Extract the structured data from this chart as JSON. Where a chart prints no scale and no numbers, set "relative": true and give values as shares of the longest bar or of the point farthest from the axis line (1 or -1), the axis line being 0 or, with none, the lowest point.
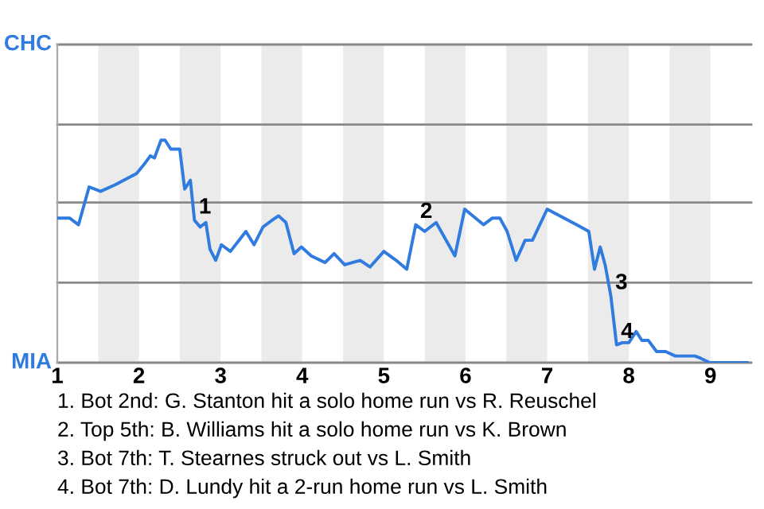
{
  "chart_data": {
    "type": "line",
    "relative": true,
    "series": [
      {
        "color": "#2f7be0",
        "x": [
          1.0,
          1.15,
          1.26,
          1.39,
          1.53,
          1.71,
          1.97,
          2.06,
          2.14,
          2.19,
          2.27,
          2.32,
          2.39,
          2.5,
          2.56,
          2.63,
          2.68,
          2.75,
          2.82,
          2.87,
          2.94,
          3.01,
          3.12,
          3.31,
          3.41,
          3.52,
          3.63,
          3.71,
          3.8,
          3.9,
          3.99,
          4.11,
          4.28,
          4.39,
          4.52,
          4.71,
          4.83,
          5.0,
          5.15,
          5.28,
          5.39,
          5.5,
          5.64,
          5.87,
          5.99,
          6.22,
          6.33,
          6.42,
          6.51,
          6.62,
          6.73,
          6.82,
          7.0,
          7.36,
          7.51,
          7.58,
          7.65,
          7.71,
          7.78,
          7.85,
          7.92,
          8.0,
          8.09,
          8.16,
          8.24,
          8.34,
          8.45,
          8.57,
          8.66,
          8.81,
          8.88,
          8.99,
          9.45
        ],
        "values": [
          0.65,
          0.65,
          0.62,
          0.79,
          0.77,
          0.8,
          0.85,
          0.89,
          0.93,
          0.92,
          1,
          1,
          0.96,
          0.96,
          0.78,
          0.82,
          0.64,
          0.61,
          0.63,
          0.51,
          0.46,
          0.53,
          0.5,
          0.59,
          0.53,
          0.61,
          0.64,
          0.66,
          0.63,
          0.49,
          0.52,
          0.48,
          0.45,
          0.49,
          0.44,
          0.46,
          0.43,
          0.5,
          0.46,
          0.42,
          0.62,
          0.59,
          0.63,
          0.48,
          0.69,
          0.62,
          0.65,
          0.65,
          0.59,
          0.46,
          0.55,
          0.55,
          0.69,
          0.62,
          0.59,
          0.42,
          0.52,
          0.44,
          0.3,
          0.08,
          0.09,
          0.09,
          0.14,
          0.1,
          0.1,
          0.05,
          0.05,
          0.03,
          0.03,
          0.03,
          0.02,
          0,
          0
        ]
      }
    ],
    "xlim": [
      1,
      9.5
    ],
    "xticks": [
      1,
      2,
      3,
      4,
      5,
      6,
      7,
      8,
      9
    ],
    "ref_lines": [
      {
        "axis": "y",
        "value": 0,
        "label": "MIA",
        "color": "#888888"
      },
      {
        "axis": "y",
        "value": 0.36,
        "label": null,
        "color": "#888888"
      },
      {
        "axis": "y",
        "value": 0.72,
        "label": null,
        "color": "#888888"
      },
      {
        "axis": "y",
        "value": 1.07,
        "label": null,
        "color": "#888888"
      },
      {
        "axis": "y",
        "value": 1.43,
        "label": "CHC",
        "color": "#888888"
      }
    ],
    "bands": [
      {
        "axis": "x",
        "from": 1.5,
        "to": 2,
        "color": "#ebebeb"
      },
      {
        "axis": "x",
        "from": 2.5,
        "to": 3,
        "color": "#ebebeb"
      },
      {
        "axis": "x",
        "from": 3.5,
        "to": 4,
        "color": "#ebebeb"
      },
      {
        "axis": "x",
        "from": 4.5,
        "to": 5,
        "color": "#ebebeb"
      },
      {
        "axis": "x",
        "from": 5.5,
        "to": 6,
        "color": "#ebebeb"
      },
      {
        "axis": "x",
        "from": 6.5,
        "to": 7,
        "color": "#ebebeb"
      },
      {
        "axis": "x",
        "from": 7.5,
        "to": 8,
        "color": "#ebebeb"
      },
      {
        "axis": "x",
        "from": 8.5,
        "to": 9,
        "color": "#ebebeb"
      }
    ],
    "annotations": [
      {
        "text": "1",
        "x": 2.68,
        "y": 0.64
      },
      {
        "text": "2",
        "x": 5.39,
        "y": 0.62
      },
      {
        "text": "3",
        "x": 7.78,
        "y": 0.3
      },
      {
        "text": "4",
        "x": 7.85,
        "y": 0.08
      },
      "1. Bot 2nd: G. Stanton hit a solo home run vs R. Reuschel",
      "2. Top 5th: B. Williams hit a solo home run vs K. Brown",
      "3. Bot 7th: T. Stearnes struck out vs L. Smith",
      "4. Bot 7th: D. Lundy hit a 2-run home run vs L. Smith"
    ]
  }
}
